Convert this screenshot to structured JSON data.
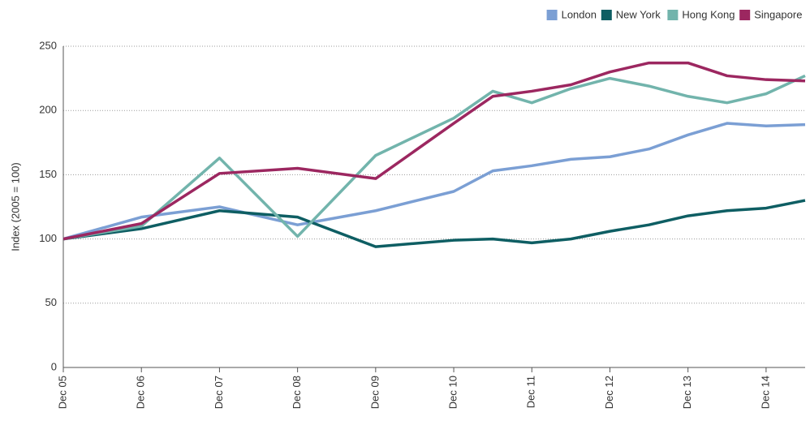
{
  "chart_data": {
    "type": "line",
    "y_label": "Index (2005 = 100)",
    "x": [
      0,
      1,
      2,
      3,
      4,
      5,
      5.5,
      6,
      6.5,
      7,
      7.5,
      8,
      8.5,
      9,
      9.5
    ],
    "xlim": [
      0,
      9.5
    ],
    "xticks": [
      {
        "value": 0,
        "label": "Dec 05"
      },
      {
        "value": 1,
        "label": "Dec 06"
      },
      {
        "value": 2,
        "label": "Dec 07"
      },
      {
        "value": 3,
        "label": "Dec 08"
      },
      {
        "value": 4,
        "label": "Dec 09"
      },
      {
        "value": 5,
        "label": "Dec 10"
      },
      {
        "value": 6,
        "label": "Dec 11"
      },
      {
        "value": 7,
        "label": "Dec 12"
      },
      {
        "value": 8,
        "label": "Dec 13"
      },
      {
        "value": 9,
        "label": "Dec 14"
      }
    ],
    "ylim": [
      0,
      250
    ],
    "yticks": [
      0,
      50,
      100,
      150,
      200,
      250
    ],
    "grid": true,
    "legend": "top-right",
    "series": [
      {
        "name": "London",
        "color": "#7b9fd4",
        "values": [
          100,
          117,
          125,
          111,
          122,
          137,
          153,
          157,
          162,
          164,
          170,
          181,
          190,
          188,
          189
        ]
      },
      {
        "name": "New York",
        "color": "#0e5e63",
        "values": [
          100,
          108,
          122,
          117,
          94,
          99,
          100,
          97,
          100,
          106,
          111,
          118,
          122,
          124,
          130
        ]
      },
      {
        "name": "Hong Kong",
        "color": "#72b4ac",
        "values": [
          100,
          110,
          163,
          102,
          165,
          194,
          215,
          206,
          217,
          225,
          219,
          211,
          206,
          213,
          227
        ]
      },
      {
        "name": "Singapore",
        "color": "#9c2760",
        "values": [
          100,
          112,
          151,
          155,
          147,
          190,
          211,
          215,
          220,
          230,
          237,
          237,
          227,
          224,
          223
        ]
      }
    ]
  }
}
